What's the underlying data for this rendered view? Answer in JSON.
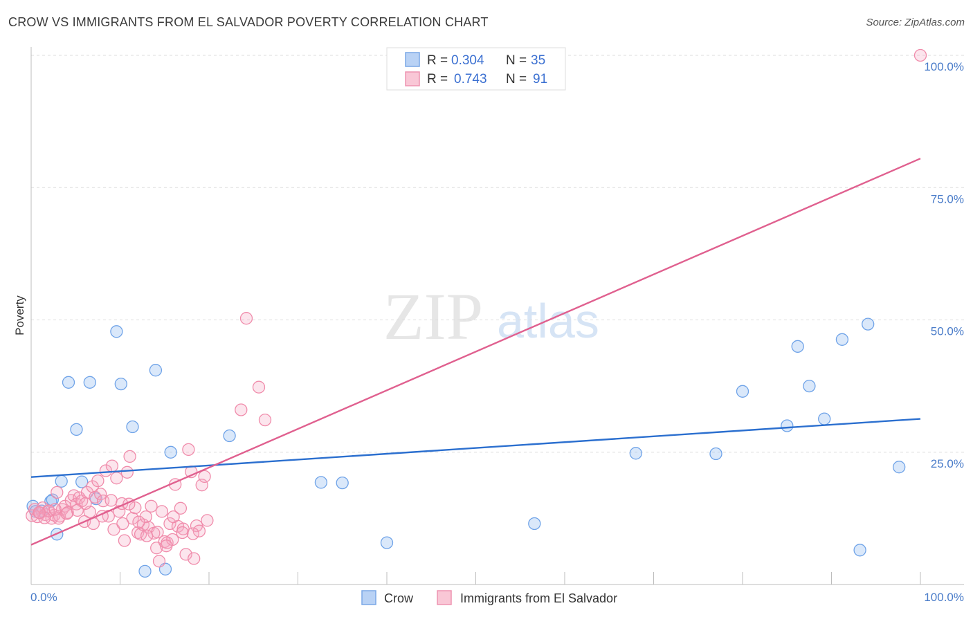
{
  "title": "CROW VS IMMIGRANTS FROM EL SALVADOR POVERTY CORRELATION CHART",
  "source": "Source: ZipAtlas.com",
  "watermark": {
    "zip": "ZIP",
    "atlas": "atlas"
  },
  "chart_data": {
    "type": "scatter",
    "title": "CROW VS IMMIGRANTS FROM EL SALVADOR POVERTY CORRELATION CHART",
    "xlabel": "",
    "ylabel": "Poverty",
    "xlim": [
      0,
      100
    ],
    "ylim": [
      0,
      100
    ],
    "x_tick_labels": [
      "0.0%",
      "100.0%"
    ],
    "y_ticks": [
      25,
      50,
      75,
      100
    ],
    "y_tick_labels": [
      "25.0%",
      "50.0%",
      "75.0%",
      "100.0%"
    ],
    "grid": true,
    "legend_placement": "top-center",
    "legend": [
      {
        "label_r": "R = ",
        "r": "0.304",
        "label_n": "N = ",
        "n": "35"
      },
      {
        "label_r": "R = ",
        "r": "0.743",
        "label_n": "N = ",
        "n": "91"
      }
    ],
    "series": [
      {
        "name": "Crow",
        "color": "#6fa3e8",
        "line_color": "#2b6fcf",
        "trend": [
          [
            0,
            20.3
          ],
          [
            100,
            31.3
          ]
        ],
        "points": [
          [
            0.2,
            14.8
          ],
          [
            0.5,
            13.8
          ],
          [
            1.2,
            13.9
          ],
          [
            2.2,
            15.7
          ],
          [
            2.4,
            16.0
          ],
          [
            2.9,
            9.5
          ],
          [
            3.4,
            19.5
          ],
          [
            4.2,
            38.2
          ],
          [
            5.1,
            29.3
          ],
          [
            5.7,
            19.4
          ],
          [
            6.6,
            38.2
          ],
          [
            7.3,
            16.2
          ],
          [
            9.6,
            47.8
          ],
          [
            10.1,
            37.9
          ],
          [
            11.4,
            29.8
          ],
          [
            12.8,
            2.5
          ],
          [
            14.0,
            40.5
          ],
          [
            15.1,
            2.9
          ],
          [
            15.7,
            25.0
          ],
          [
            22.3,
            28.1
          ],
          [
            32.6,
            19.3
          ],
          [
            35.0,
            19.2
          ],
          [
            40.0,
            7.9
          ],
          [
            56.6,
            11.5
          ],
          [
            68.0,
            24.8
          ],
          [
            77.0,
            24.7
          ],
          [
            80.0,
            36.5
          ],
          [
            85.0,
            30.0
          ],
          [
            86.2,
            45.0
          ],
          [
            87.5,
            37.5
          ],
          [
            89.2,
            31.3
          ],
          [
            91.2,
            46.3
          ],
          [
            93.2,
            6.5
          ],
          [
            94.1,
            49.2
          ],
          [
            97.6,
            22.2
          ]
        ]
      },
      {
        "name": "Immigrants from El Salvador",
        "color": "#f08cab",
        "line_color": "#e0608f",
        "trend": [
          [
            0,
            7.5
          ],
          [
            100,
            80.5
          ]
        ],
        "points": [
          [
            0.1,
            13.0
          ],
          [
            0.4,
            14.2
          ],
          [
            0.7,
            12.8
          ],
          [
            1.0,
            13.5
          ],
          [
            1.3,
            14.5
          ],
          [
            1.6,
            13.2
          ],
          [
            1.9,
            13.9
          ],
          [
            2.3,
            12.5
          ],
          [
            2.6,
            13.1
          ],
          [
            2.9,
            17.4
          ],
          [
            3.2,
            12.9
          ],
          [
            3.5,
            14.2
          ],
          [
            3.8,
            14.8
          ],
          [
            4.1,
            13.6
          ],
          [
            4.5,
            15.9
          ],
          [
            4.8,
            16.8
          ],
          [
            5.1,
            15.2
          ],
          [
            5.4,
            16.4
          ],
          [
            5.7,
            15.8
          ],
          [
            6.0,
            11.9
          ],
          [
            6.3,
            17.4
          ],
          [
            6.6,
            13.7
          ],
          [
            6.9,
            18.5
          ],
          [
            7.2,
            16.5
          ],
          [
            7.5,
            19.6
          ],
          [
            7.8,
            17.1
          ],
          [
            8.1,
            15.8
          ],
          [
            8.4,
            21.5
          ],
          [
            8.7,
            12.9
          ],
          [
            9.0,
            15.9
          ],
          [
            9.3,
            10.4
          ],
          [
            9.6,
            20.1
          ],
          [
            9.9,
            13.8
          ],
          [
            10.2,
            15.3
          ],
          [
            10.5,
            8.3
          ],
          [
            10.8,
            21.2
          ],
          [
            11.1,
            24.2
          ],
          [
            11.4,
            12.5
          ],
          [
            11.7,
            14.5
          ],
          [
            12.0,
            9.8
          ],
          [
            12.3,
            9.5
          ],
          [
            12.6,
            11.3
          ],
          [
            12.9,
            12.8
          ],
          [
            13.2,
            10.8
          ],
          [
            13.5,
            14.8
          ],
          [
            13.8,
            9.7
          ],
          [
            14.1,
            6.9
          ],
          [
            14.4,
            4.4
          ],
          [
            14.7,
            13.8
          ],
          [
            15.0,
            8.1
          ],
          [
            15.3,
            7.9
          ],
          [
            15.6,
            11.5
          ],
          [
            15.9,
            8.5
          ],
          [
            16.2,
            18.9
          ],
          [
            16.5,
            11.0
          ],
          [
            16.8,
            14.4
          ],
          [
            17.1,
            10.5
          ],
          [
            17.4,
            5.7
          ],
          [
            17.7,
            25.5
          ],
          [
            18.0,
            21.3
          ],
          [
            18.3,
            4.9
          ],
          [
            18.6,
            11.1
          ],
          [
            18.9,
            10.1
          ],
          [
            19.2,
            18.8
          ],
          [
            19.5,
            20.4
          ],
          [
            19.8,
            12.1
          ],
          [
            23.6,
            33.0
          ],
          [
            24.2,
            50.3
          ],
          [
            25.6,
            37.3
          ],
          [
            26.3,
            31.1
          ],
          [
            5.2,
            14.0
          ],
          [
            6.1,
            15.3
          ],
          [
            7.0,
            11.5
          ],
          [
            8.0,
            12.9
          ],
          [
            9.1,
            22.4
          ],
          [
            10.3,
            11.5
          ],
          [
            11.0,
            15.2
          ],
          [
            12.1,
            11.8
          ],
          [
            13.0,
            9.2
          ],
          [
            14.2,
            9.9
          ],
          [
            15.2,
            7.3
          ],
          [
            16.0,
            12.8
          ],
          [
            17.0,
            9.8
          ],
          [
            18.2,
            9.6
          ],
          [
            3.1,
            12.5
          ],
          [
            4.0,
            13.4
          ],
          [
            2.0,
            13.9
          ],
          [
            1.5,
            12.6
          ],
          [
            0.9,
            13.6
          ],
          [
            2.7,
            14.2
          ],
          [
            100.0,
            100.0
          ]
        ]
      }
    ]
  }
}
